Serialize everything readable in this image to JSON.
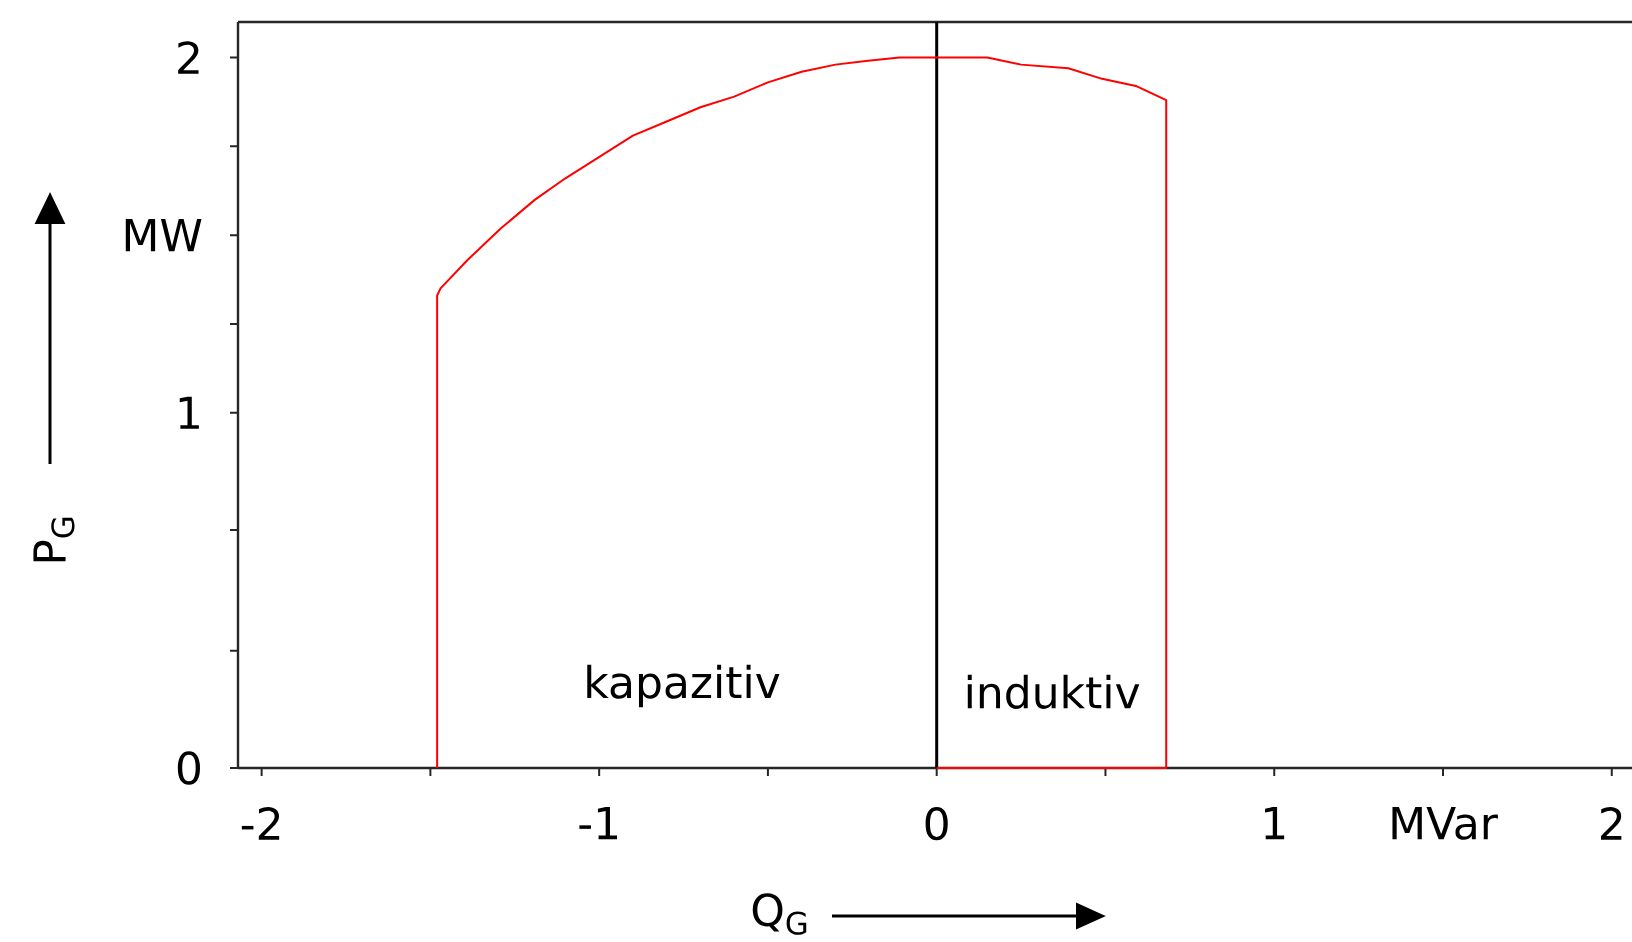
{
  "chart_data": {
    "type": "line",
    "xlabel": "Q$_{G}$",
    "ylabel": "P$_{G}$",
    "x": [
      0,
      0.68,
      0.68,
      0.59,
      0.49,
      0.39,
      0.25,
      0.15,
      -0.11,
      -0.21,
      -0.3,
      -0.4,
      -0.5,
      -0.6,
      -0.7,
      -0.8,
      -0.9,
      -1.0,
      -1.1,
      -1.19,
      -1.29,
      -1.39,
      -1.47,
      -1.48,
      -1.48
    ],
    "series": [
      {
        "color": "#ff0000",
        "values": [
          0,
          0,
          1.88,
          1.92,
          1.94,
          1.97,
          1.98,
          2.0,
          2.0,
          1.99,
          1.98,
          1.96,
          1.93,
          1.89,
          1.86,
          1.82,
          1.78,
          1.72,
          1.66,
          1.6,
          1.52,
          1.43,
          1.35,
          1.33,
          0
        ]
      }
    ],
    "xlim": [
      -2.07,
      2.06
    ],
    "ylim": [
      0,
      2.1
    ],
    "xticks": [
      -2,
      {
        "value": -1.5,
        "label": null
      },
      -1,
      {
        "value": -0.5,
        "label": null
      },
      0,
      {
        "value": 0.5,
        "label": null
      },
      1,
      {
        "value": 1.5,
        "label": "MVar"
      },
      2
    ],
    "yticks": [
      0,
      {
        "value": 0.33,
        "label": null
      },
      {
        "value": 0.67,
        "label": null
      },
      1,
      {
        "value": 1.25,
        "label": null
      },
      {
        "value": 1.5,
        "label": "MW"
      },
      {
        "value": 1.75,
        "label": null
      },
      2
    ],
    "ref_lines": [
      {
        "axis": "x",
        "value": 0,
        "color": "#000000"
      }
    ],
    "marker": "none",
    "line_style": "solid",
    "grid": false,
    "annotations": [
      "kapazitiv",
      "induktiv"
    ]
  }
}
